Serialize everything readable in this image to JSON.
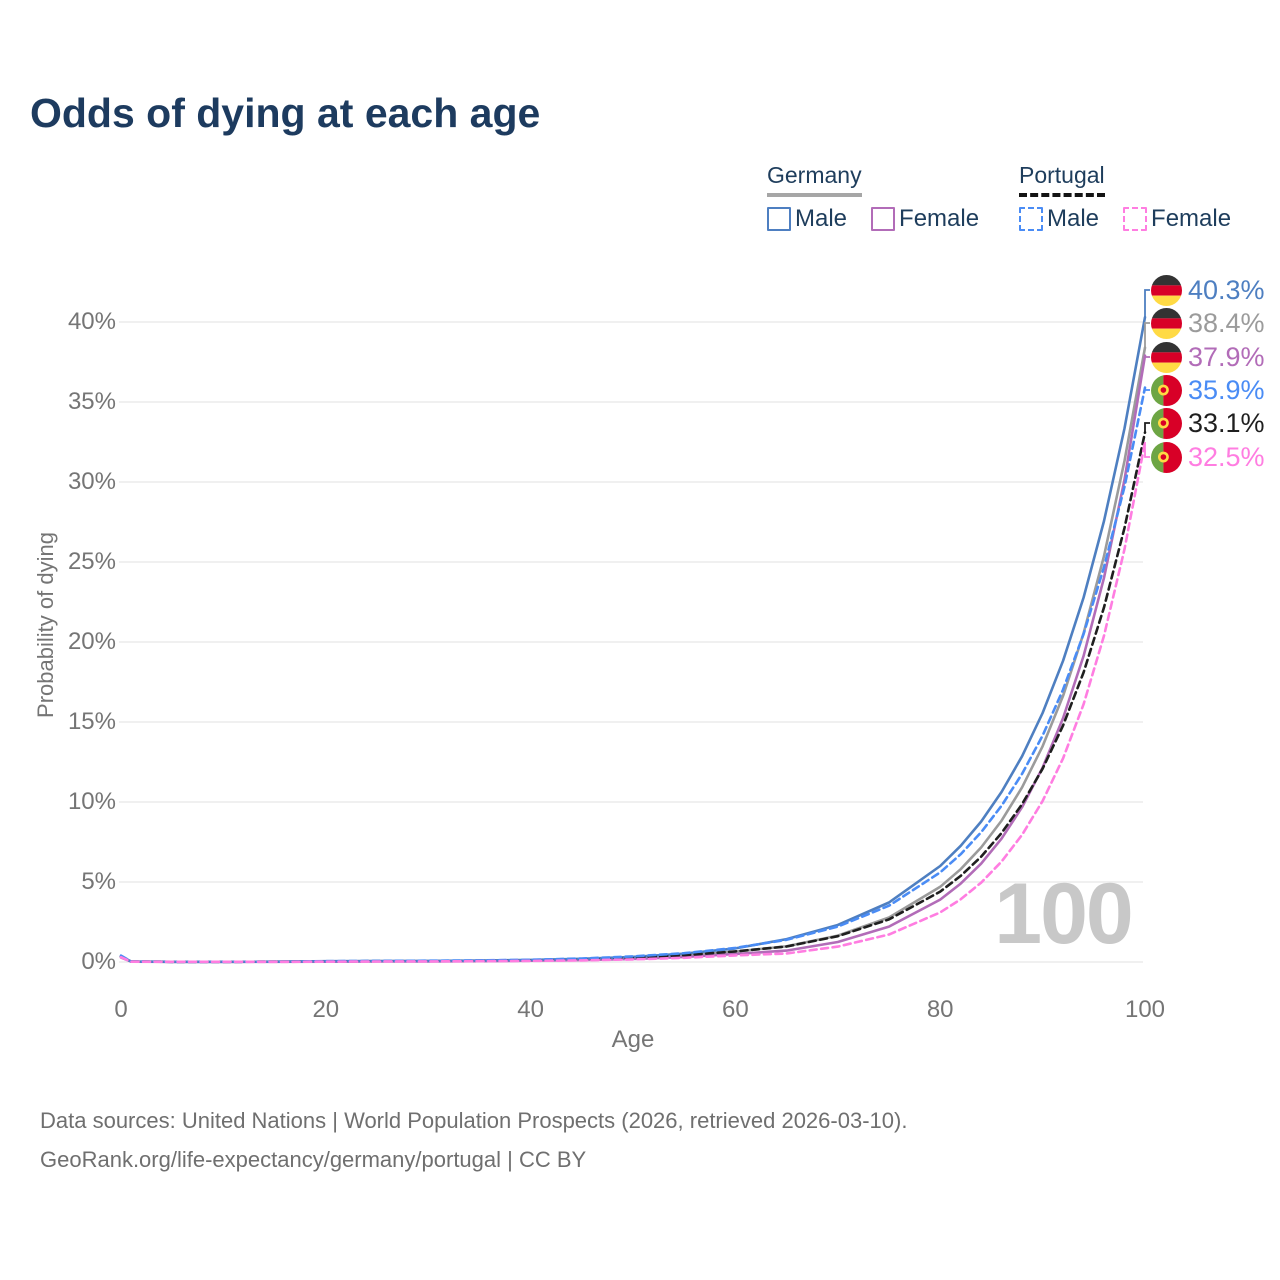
{
  "title": "Odds of dying at each age",
  "watermark": "100",
  "legend": {
    "groups": [
      {
        "country": "Germany",
        "line_style": "solid",
        "items": [
          {
            "label": "Male",
            "color": "#4e7fc1"
          },
          {
            "label": "Female",
            "color": "#b26cb8"
          }
        ]
      },
      {
        "country": "Portugal",
        "line_style": "dashed",
        "items": [
          {
            "label": "Male",
            "color": "#4a8cf5"
          },
          {
            "label": "Female",
            "color": "#ff7de1"
          }
        ]
      }
    ]
  },
  "axes": {
    "x_label": "Age",
    "y_label": "Probability of dying",
    "x_ticks": [
      0,
      20,
      40,
      60,
      80,
      100
    ],
    "y_ticks": [
      "0%",
      "5%",
      "10%",
      "15%",
      "20%",
      "25%",
      "30%",
      "35%",
      "40%"
    ]
  },
  "footer": {
    "line1": "Data sources: United Nations | World Population Prospects (2026, retrieved 2026-03-10).",
    "line2": "GeoRank.org/life-expectancy/germany/portugal | CC BY"
  },
  "chart_data": {
    "type": "line",
    "title": "Odds of dying at each age",
    "xlabel": "Age",
    "ylabel": "Probability of dying",
    "x_range": [
      0,
      100
    ],
    "y_range_percent": [
      0,
      42
    ],
    "grid": "horizontal-only",
    "legend_position": "top-right",
    "age_counter_watermark": "100",
    "x": [
      0,
      1,
      5,
      10,
      15,
      20,
      25,
      30,
      35,
      40,
      45,
      50,
      55,
      60,
      65,
      70,
      75,
      80,
      82,
      84,
      86,
      88,
      90,
      92,
      94,
      96,
      98,
      100
    ],
    "series": [
      {
        "name": "Germany male",
        "country": "Germany",
        "sex": "male",
        "color": "#4e7fc1",
        "dash": false,
        "flag": "de",
        "end_label": "40.3%",
        "values_percent": [
          0.35,
          0.03,
          0.01,
          0.01,
          0.02,
          0.05,
          0.06,
          0.07,
          0.09,
          0.13,
          0.2,
          0.32,
          0.52,
          0.85,
          1.43,
          2.31,
          3.72,
          6.0,
          7.26,
          8.78,
          10.63,
          12.86,
          15.56,
          18.83,
          22.78,
          27.56,
          33.35,
          40.3
        ]
      },
      {
        "name": "Germany both sexes",
        "country": "Germany",
        "sex": "both",
        "color": "#9b9b9b",
        "dash": false,
        "flag": "de",
        "end_label": "38.4%",
        "values_percent": [
          0.3,
          0.03,
          0.01,
          0.01,
          0.02,
          0.04,
          0.05,
          0.05,
          0.07,
          0.1,
          0.16,
          0.25,
          0.4,
          0.65,
          0.98,
          1.65,
          2.78,
          4.7,
          5.8,
          7.16,
          8.84,
          10.92,
          13.48,
          16.64,
          20.55,
          25.37,
          31.32,
          38.4
        ]
      },
      {
        "name": "Germany female",
        "country": "Germany",
        "sex": "female",
        "color": "#b26cb8",
        "dash": false,
        "flag": "de",
        "end_label": "37.9%",
        "values_percent": [
          0.28,
          0.02,
          0.01,
          0.01,
          0.01,
          0.02,
          0.03,
          0.04,
          0.05,
          0.08,
          0.12,
          0.19,
          0.31,
          0.5,
          0.71,
          1.25,
          2.21,
          3.9,
          4.9,
          6.15,
          7.71,
          9.68,
          12.15,
          15.25,
          19.13,
          24.01,
          30.14,
          37.9
        ]
      },
      {
        "name": "Portugal male",
        "country": "Portugal",
        "sex": "male",
        "color": "#4a8cf5",
        "dash": true,
        "flag": "pt",
        "end_label": "35.9%",
        "values_percent": [
          0.4,
          0.03,
          0.01,
          0.01,
          0.02,
          0.05,
          0.07,
          0.08,
          0.1,
          0.14,
          0.22,
          0.35,
          0.55,
          0.88,
          1.39,
          2.21,
          3.52,
          5.6,
          6.74,
          8.11,
          9.77,
          11.76,
          14.15,
          17.03,
          20.5,
          24.68,
          29.7,
          35.9
        ]
      },
      {
        "name": "Portugal both sexes",
        "country": "Portugal",
        "sex": "both",
        "color": "#1f1f1f",
        "dash": true,
        "flag": "pt",
        "end_label": "33.1%",
        "values_percent": [
          0.35,
          0.03,
          0.01,
          0.01,
          0.02,
          0.04,
          0.05,
          0.06,
          0.08,
          0.11,
          0.17,
          0.27,
          0.42,
          0.66,
          0.97,
          1.61,
          2.66,
          4.4,
          5.38,
          6.59,
          8.06,
          9.87,
          12.08,
          14.79,
          18.1,
          22.16,
          27.13,
          33.1
        ]
      },
      {
        "name": "Portugal female",
        "country": "Portugal",
        "sex": "female",
        "color": "#ff7de1",
        "dash": true,
        "flag": "pt",
        "end_label": "32.5%",
        "values_percent": [
          0.3,
          0.02,
          0.01,
          0.01,
          0.01,
          0.02,
          0.03,
          0.04,
          0.05,
          0.07,
          0.1,
          0.16,
          0.26,
          0.41,
          0.53,
          0.96,
          1.72,
          3.1,
          3.92,
          4.96,
          6.28,
          7.95,
          10.06,
          12.73,
          16.11,
          20.39,
          25.8,
          32.5
        ]
      }
    ]
  }
}
